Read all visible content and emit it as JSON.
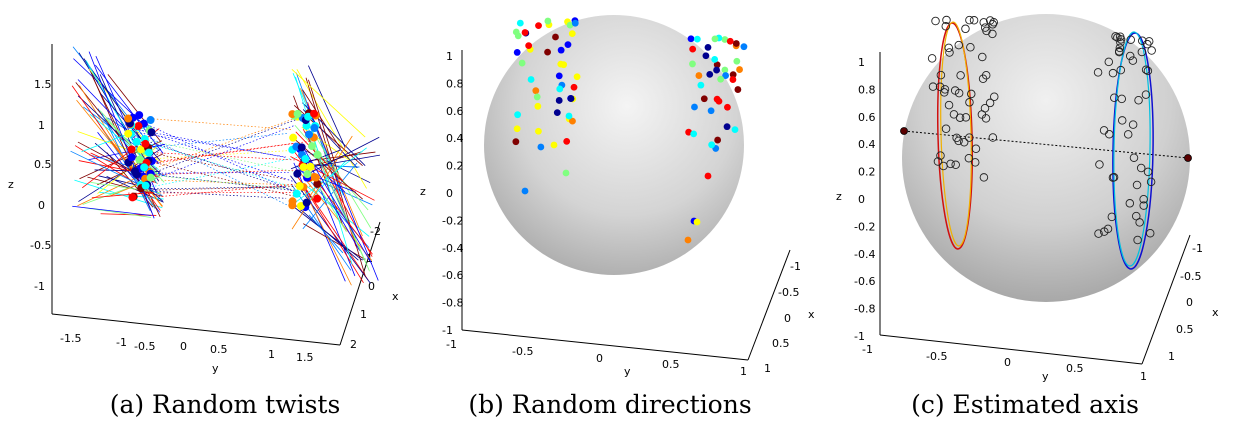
{
  "figure": {
    "captions": [
      "(a) Random twists",
      "(b) Random directions",
      "(c) Estimated axis"
    ]
  },
  "chart_data": [
    {
      "type": "scatter3d",
      "title": "(a) Random twists",
      "xlabel": "x",
      "ylabel": "y",
      "zlabel": "z",
      "xlim": [
        -2,
        2
      ],
      "ylim": [
        -1.5,
        1.5
      ],
      "zlim": [
        -1.5,
        1.8
      ],
      "xticks": [
        "-2",
        "-1",
        "0",
        "1",
        "2"
      ],
      "yticks": [
        "-1.5",
        "-1",
        "-0.5",
        "0",
        "0.5",
        "1",
        "1.5"
      ],
      "zticks": [
        "1.5",
        "1",
        "0.5",
        "0",
        "-0.5",
        "-1"
      ],
      "colormap": "jet",
      "series": [
        {
          "cluster": "left",
          "y_range": [
            -0.7,
            -0.5
          ],
          "z_range": [
            0.1,
            1.2
          ],
          "points": 40
        },
        {
          "cluster": "right",
          "y_range": [
            1.3,
            1.5
          ],
          "z_range": [
            0.0,
            1.1
          ],
          "points": 40
        }
      ]
    },
    {
      "type": "scatter3d",
      "title": "(b) Random directions",
      "xlabel": "x",
      "ylabel": "y",
      "zlabel": "z",
      "xlim": [
        -1,
        1
      ],
      "ylim": [
        -1,
        1
      ],
      "zlim": [
        -1,
        1
      ],
      "xticks": [
        "-1",
        "-0.5",
        "0",
        "0.5",
        "1"
      ],
      "yticks": [
        "-1",
        "-0.5",
        "0",
        "0.5",
        "1"
      ],
      "zticks": [
        "1",
        "0.8",
        "0.6",
        "0.4",
        "0.2",
        "0",
        "-0.2",
        "-0.4",
        "-0.6",
        "-0.8",
        "-1"
      ],
      "colormap": "jet",
      "unit_sphere": true
    },
    {
      "type": "scatter3d",
      "title": "(c) Estimated axis",
      "xlabel": "x",
      "ylabel": "y",
      "zlabel": "z",
      "xlim": [
        -1,
        1
      ],
      "ylim": [
        -1,
        1
      ],
      "zlim": [
        -1,
        1
      ],
      "xticks": [
        "-1",
        "-0.5",
        "0",
        "0.5",
        "1"
      ],
      "yticks": [
        "-1",
        "-0.5",
        "0",
        "0.5",
        "1"
      ],
      "zticks": [
        "1",
        "0.8",
        "0.6",
        "0.4",
        "0.2",
        "0",
        "-0.2",
        "-0.4",
        "-0.6",
        "-0.8",
        "-1"
      ],
      "unit_sphere": true,
      "fitted_circles": [
        "left (yellow/red)",
        "right (cyan/blue)"
      ],
      "markers": "open circles"
    }
  ],
  "colors": {
    "jet": [
      "#00008f",
      "#0000ff",
      "#0080ff",
      "#00ffff",
      "#80ff80",
      "#ffff00",
      "#ff8000",
      "#ff0000",
      "#800000"
    ],
    "sphere_light": "#f2f2f2",
    "sphere_dark": "#a8a8a8",
    "axis_dot": "#5a0000"
  }
}
